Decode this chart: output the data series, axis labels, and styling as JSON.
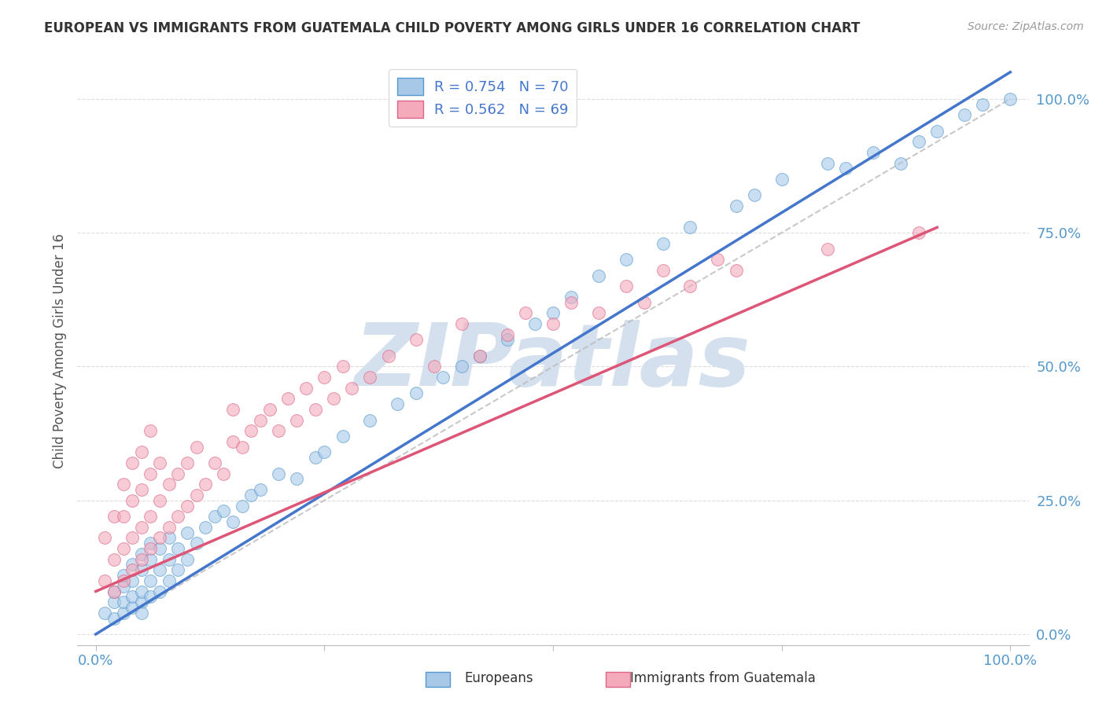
{
  "title": "EUROPEAN VS IMMIGRANTS FROM GUATEMALA CHILD POVERTY AMONG GIRLS UNDER 16 CORRELATION CHART",
  "source_text": "Source: ZipAtlas.com",
  "ylabel": "Child Poverty Among Girls Under 16",
  "legend_label1": "Europeans",
  "legend_label2": "Immigrants from Guatemala",
  "r1": 0.754,
  "n1": 70,
  "r2": 0.562,
  "n2": 69,
  "color_blue_fill": "#A8C8E8",
  "color_blue_edge": "#5599CC",
  "color_pink_fill": "#F4AABB",
  "color_pink_edge": "#DD6688",
  "color_line_blue": "#4477CC",
  "color_line_pink": "#DD5577",
  "color_diagonal": "#BBBBBB",
  "watermark_text": "ZIPatlas",
  "watermark_color": "#D4E0EE",
  "background_color": "#FFFFFF",
  "grid_color": "#DDDDDD",
  "tick_label_color": "#5599CC",
  "ylabel_color": "#555555",
  "title_color": "#333333",
  "source_color": "#999999",
  "legend_label_color": "#4477CC",
  "bottom_label_color": "#333333",
  "blue_scatter_x": [
    0.01,
    0.02,
    0.02,
    0.02,
    0.03,
    0.03,
    0.03,
    0.03,
    0.04,
    0.04,
    0.04,
    0.04,
    0.05,
    0.05,
    0.05,
    0.05,
    0.05,
    0.06,
    0.06,
    0.06,
    0.06,
    0.07,
    0.07,
    0.07,
    0.08,
    0.08,
    0.08,
    0.09,
    0.09,
    0.1,
    0.1,
    0.11,
    0.12,
    0.13,
    0.14,
    0.15,
    0.16,
    0.17,
    0.18,
    0.2,
    0.22,
    0.24,
    0.25,
    0.27,
    0.3,
    0.33,
    0.35,
    0.38,
    0.4,
    0.42,
    0.45,
    0.48,
    0.5,
    0.52,
    0.55,
    0.58,
    0.62,
    0.65,
    0.7,
    0.72,
    0.75,
    0.8,
    0.82,
    0.85,
    0.88,
    0.9,
    0.92,
    0.95,
    0.97,
    1.0
  ],
  "blue_scatter_y": [
    0.04,
    0.03,
    0.06,
    0.08,
    0.04,
    0.06,
    0.09,
    0.11,
    0.05,
    0.07,
    0.1,
    0.13,
    0.06,
    0.08,
    0.12,
    0.15,
    0.04,
    0.07,
    0.1,
    0.14,
    0.17,
    0.08,
    0.12,
    0.16,
    0.1,
    0.14,
    0.18,
    0.12,
    0.16,
    0.14,
    0.19,
    0.17,
    0.2,
    0.22,
    0.23,
    0.21,
    0.24,
    0.26,
    0.27,
    0.3,
    0.29,
    0.33,
    0.34,
    0.37,
    0.4,
    0.43,
    0.45,
    0.48,
    0.5,
    0.52,
    0.55,
    0.58,
    0.6,
    0.63,
    0.67,
    0.7,
    0.73,
    0.76,
    0.8,
    0.82,
    0.85,
    0.88,
    0.87,
    0.9,
    0.88,
    0.92,
    0.94,
    0.97,
    0.99,
    1.0
  ],
  "pink_scatter_x": [
    0.01,
    0.01,
    0.02,
    0.02,
    0.02,
    0.03,
    0.03,
    0.03,
    0.03,
    0.04,
    0.04,
    0.04,
    0.04,
    0.05,
    0.05,
    0.05,
    0.05,
    0.06,
    0.06,
    0.06,
    0.06,
    0.07,
    0.07,
    0.07,
    0.08,
    0.08,
    0.09,
    0.09,
    0.1,
    0.1,
    0.11,
    0.11,
    0.12,
    0.13,
    0.14,
    0.15,
    0.15,
    0.16,
    0.17,
    0.18,
    0.19,
    0.2,
    0.21,
    0.22,
    0.23,
    0.24,
    0.25,
    0.26,
    0.27,
    0.28,
    0.3,
    0.32,
    0.35,
    0.37,
    0.4,
    0.42,
    0.45,
    0.47,
    0.5,
    0.52,
    0.55,
    0.58,
    0.6,
    0.62,
    0.65,
    0.68,
    0.7,
    0.8,
    0.9
  ],
  "pink_scatter_y": [
    0.1,
    0.18,
    0.08,
    0.14,
    0.22,
    0.1,
    0.16,
    0.22,
    0.28,
    0.12,
    0.18,
    0.25,
    0.32,
    0.14,
    0.2,
    0.27,
    0.34,
    0.16,
    0.22,
    0.3,
    0.38,
    0.18,
    0.25,
    0.32,
    0.2,
    0.28,
    0.22,
    0.3,
    0.24,
    0.32,
    0.26,
    0.35,
    0.28,
    0.32,
    0.3,
    0.36,
    0.42,
    0.35,
    0.38,
    0.4,
    0.42,
    0.38,
    0.44,
    0.4,
    0.46,
    0.42,
    0.48,
    0.44,
    0.5,
    0.46,
    0.48,
    0.52,
    0.55,
    0.5,
    0.58,
    0.52,
    0.56,
    0.6,
    0.58,
    0.62,
    0.6,
    0.65,
    0.62,
    0.68,
    0.65,
    0.7,
    0.68,
    0.72,
    0.75
  ],
  "blue_line_x": [
    0.0,
    1.0
  ],
  "blue_line_y": [
    0.0,
    1.05
  ],
  "pink_line_x": [
    0.0,
    0.92
  ],
  "pink_line_y": [
    0.08,
    0.76
  ],
  "xlim": [
    -0.02,
    1.02
  ],
  "ylim": [
    -0.02,
    1.08
  ],
  "ytick_positions": [
    0.0,
    0.25,
    0.5,
    0.75,
    1.0
  ],
  "ytick_labels": [
    "0.0%",
    "25.0%",
    "50.0%",
    "75.0%",
    "100.0%"
  ],
  "xtick_positions": [
    0.0,
    0.25,
    0.5,
    0.75,
    1.0
  ],
  "xtick_edge_labels_only": true,
  "xedge_labels": [
    "0.0%",
    "100.0%"
  ]
}
